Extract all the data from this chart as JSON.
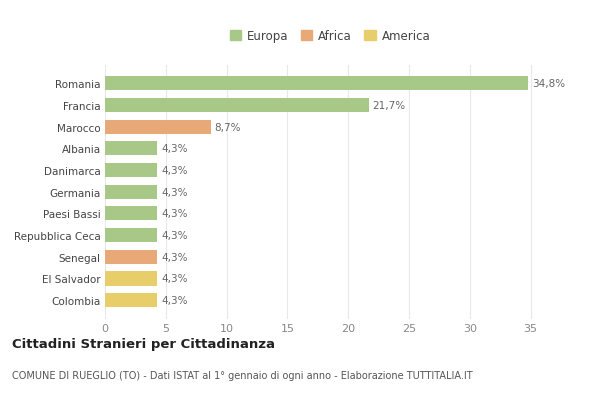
{
  "categories": [
    "Colombia",
    "El Salvador",
    "Senegal",
    "Repubblica Ceca",
    "Paesi Bassi",
    "Germania",
    "Danimarca",
    "Albania",
    "Marocco",
    "Francia",
    "Romania"
  ],
  "values": [
    4.3,
    4.3,
    4.3,
    4.3,
    4.3,
    4.3,
    4.3,
    4.3,
    8.7,
    21.7,
    34.8
  ],
  "colors": [
    "#e8ce6a",
    "#e8ce6a",
    "#e8a878",
    "#a8c888",
    "#a8c888",
    "#a8c888",
    "#a8c888",
    "#a8c888",
    "#e8a878",
    "#a8c888",
    "#a8c888"
  ],
  "labels": [
    "4,3%",
    "4,3%",
    "4,3%",
    "4,3%",
    "4,3%",
    "4,3%",
    "4,3%",
    "4,3%",
    "8,7%",
    "21,7%",
    "34,8%"
  ],
  "legend_labels": [
    "Europa",
    "Africa",
    "America"
  ],
  "legend_colors": [
    "#a8c888",
    "#e8a878",
    "#e8ce6a"
  ],
  "title": "Cittadini Stranieri per Cittadinanza",
  "subtitle": "COMUNE DI RUEGLIO (TO) - Dati ISTAT al 1° gennaio di ogni anno - Elaborazione TUTTITALIA.IT",
  "xlim": [
    0,
    37
  ],
  "xticks": [
    0,
    5,
    10,
    15,
    20,
    25,
    30,
    35
  ],
  "background_color": "#ffffff",
  "grid_color": "#e8e8e8",
  "label_color": "#666666",
  "tick_color": "#888888"
}
